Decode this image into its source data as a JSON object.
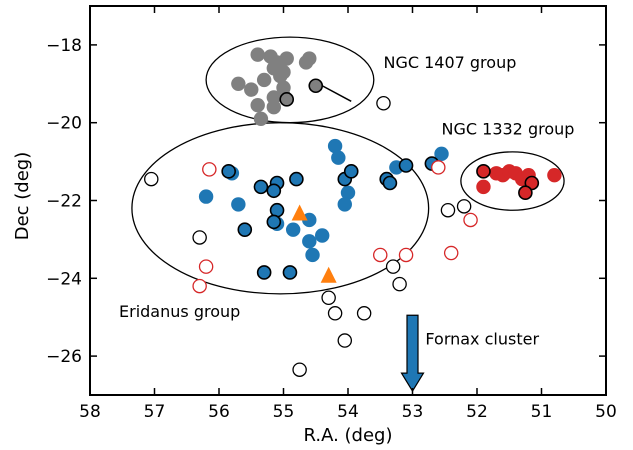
{
  "chart_data": {
    "type": "scatter",
    "xlabel": "R.A. (deg)",
    "ylabel": "Dec (deg)",
    "xlim": [
      58,
      50
    ],
    "ylim": [
      -27,
      -17
    ],
    "x_reversed": true,
    "xticks": [
      58,
      57,
      56,
      55,
      54,
      53,
      52,
      51,
      50
    ],
    "yticks": [
      -18,
      -20,
      -22,
      -24,
      -26
    ],
    "xtick_labels": [
      "58",
      "57",
      "56",
      "55",
      "54",
      "53",
      "52",
      "51",
      "50"
    ],
    "ytick_labels": [
      "−18",
      "−20",
      "−22",
      "−24",
      "−26"
    ],
    "grid": false,
    "colors": {
      "gray": "#808080",
      "blue": "#1f77b4",
      "red": "#d62728",
      "orange": "#ff7f0e",
      "black": "#000000"
    },
    "series": [
      {
        "marker": "filled-circle-gray",
        "color": "#808080",
        "points": [
          [
            55.4,
            -18.25
          ],
          [
            55.2,
            -18.3
          ],
          [
            55.1,
            -18.45
          ],
          [
            55.0,
            -18.7
          ],
          [
            54.95,
            -18.35
          ],
          [
            54.6,
            -18.35
          ],
          [
            54.65,
            -18.45
          ],
          [
            55.15,
            -18.6
          ],
          [
            55.3,
            -18.9
          ],
          [
            55.05,
            -18.8
          ],
          [
            55.0,
            -19.1
          ],
          [
            55.7,
            -19.0
          ],
          [
            55.5,
            -19.15
          ],
          [
            55.15,
            -19.35
          ],
          [
            55.0,
            -19.3
          ],
          [
            55.4,
            -19.55
          ],
          [
            55.15,
            -19.6
          ],
          [
            55.35,
            -19.9
          ]
        ]
      },
      {
        "marker": "filled-circle-gray-black-edge",
        "color": "#808080",
        "points": [
          [
            54.95,
            -19.4
          ],
          [
            54.5,
            -19.05
          ]
        ]
      },
      {
        "marker": "filled-circle-blue",
        "color": "#1f77b4",
        "points": [
          [
            54.2,
            -20.6
          ],
          [
            54.15,
            -20.9
          ],
          [
            52.55,
            -20.8
          ],
          [
            53.25,
            -21.15
          ],
          [
            56.2,
            -21.9
          ],
          [
            55.8,
            -21.3
          ],
          [
            55.7,
            -22.1
          ],
          [
            55.1,
            -22.6
          ],
          [
            54.85,
            -22.75
          ],
          [
            54.6,
            -22.5
          ],
          [
            54.6,
            -23.05
          ],
          [
            54.4,
            -22.9
          ],
          [
            54.55,
            -23.4
          ],
          [
            54.0,
            -21.8
          ],
          [
            54.05,
            -22.1
          ]
        ]
      },
      {
        "marker": "filled-circle-blue-black-edge",
        "color": "#1f77b4",
        "points": [
          [
            55.85,
            -21.25
          ],
          [
            55.35,
            -21.65
          ],
          [
            55.1,
            -21.55
          ],
          [
            55.15,
            -21.75
          ],
          [
            54.8,
            -21.45
          ],
          [
            55.1,
            -22.25
          ],
          [
            55.15,
            -22.55
          ],
          [
            54.05,
            -21.45
          ],
          [
            53.95,
            -21.25
          ],
          [
            53.4,
            -21.45
          ],
          [
            53.35,
            -21.55
          ],
          [
            53.1,
            -21.1
          ],
          [
            52.7,
            -21.05
          ],
          [
            55.6,
            -22.75
          ],
          [
            55.3,
            -23.85
          ],
          [
            54.9,
            -23.85
          ]
        ]
      },
      {
        "marker": "filled-circle-red",
        "color": "#d62728",
        "points": [
          [
            51.9,
            -21.65
          ],
          [
            51.7,
            -21.3
          ],
          [
            51.6,
            -21.35
          ],
          [
            51.5,
            -21.25
          ],
          [
            51.4,
            -21.3
          ],
          [
            51.3,
            -21.45
          ],
          [
            51.2,
            -21.35
          ],
          [
            50.8,
            -21.35
          ]
        ]
      },
      {
        "marker": "filled-circle-red-black-edge",
        "color": "#d62728",
        "points": [
          [
            51.9,
            -21.25
          ],
          [
            51.15,
            -21.55
          ],
          [
            51.25,
            -21.8
          ]
        ]
      },
      {
        "marker": "triangle-orange",
        "color": "#ff7f0e",
        "points": [
          [
            54.75,
            -22.35
          ],
          [
            54.3,
            -23.95
          ]
        ]
      },
      {
        "marker": "open-circle-black",
        "color": "#000000",
        "points": [
          [
            57.05,
            -21.45
          ],
          [
            56.3,
            -22.95
          ],
          [
            53.45,
            -19.5
          ],
          [
            52.45,
            -22.25
          ],
          [
            52.2,
            -22.15
          ],
          [
            53.3,
            -23.7
          ],
          [
            53.2,
            -24.15
          ],
          [
            54.3,
            -24.5
          ],
          [
            54.2,
            -24.9
          ],
          [
            53.75,
            -24.9
          ],
          [
            54.05,
            -25.6
          ],
          [
            54.75,
            -26.35
          ]
        ]
      },
      {
        "marker": "open-circle-red",
        "color": "#d62728",
        "points": [
          [
            56.15,
            -21.2
          ],
          [
            56.2,
            -23.7
          ],
          [
            56.3,
            -24.2
          ],
          [
            53.5,
            -23.4
          ],
          [
            53.1,
            -23.4
          ],
          [
            52.6,
            -21.15
          ],
          [
            52.1,
            -22.5
          ],
          [
            52.4,
            -23.35
          ]
        ]
      }
    ],
    "ellipses": [
      {
        "cx": 54.9,
        "cy": -18.9,
        "rx": 1.3,
        "ry": 1.1,
        "angle": 0
      },
      {
        "cx": 55.05,
        "cy": -22.2,
        "rx": 2.3,
        "ry": 2.2,
        "angle": 0
      },
      {
        "cx": 51.45,
        "cy": -21.5,
        "rx": 0.8,
        "ry": 0.75,
        "angle": 0
      }
    ],
    "annotations": [
      {
        "text": "NGC 1407 group",
        "x": 53.45,
        "y": -18.6
      },
      {
        "text": "NGC 1332 group",
        "x": 52.55,
        "y": -20.3
      },
      {
        "text": "Eridanus group",
        "x": 57.55,
        "y": -25.0
      },
      {
        "text": "Fornax cluster",
        "x": 52.8,
        "y": -25.7
      }
    ],
    "connector_line": {
      "x1": 54.4,
      "y1": -19.05,
      "x2": 53.95,
      "y2": -19.45
    },
    "arrow": {
      "x": 53.0,
      "y_start": -24.95,
      "y_end": -26.9,
      "color": "#1f77b4"
    }
  }
}
